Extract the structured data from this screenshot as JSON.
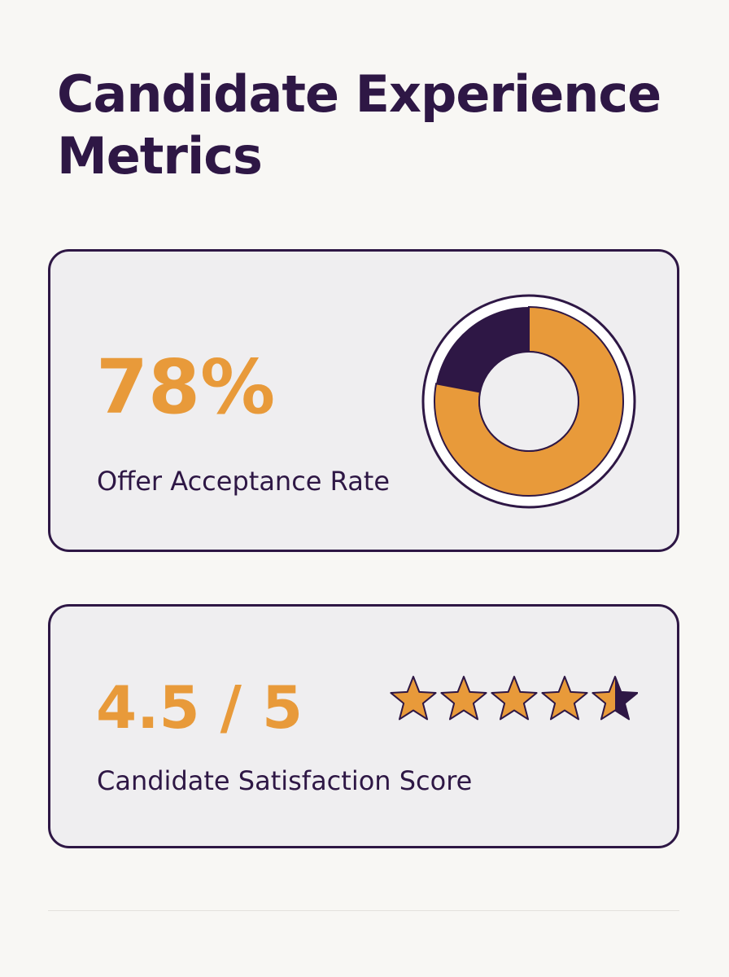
{
  "title": "Candidate Experience Metrics",
  "offer_acceptance": {
    "value_text": "78%",
    "label": "Offer Acceptance Rate",
    "percent": 78
  },
  "satisfaction": {
    "value_text": "4.5 / 5",
    "label": "Candidate Satisfaction Score",
    "rating": 4.5,
    "max_rating": 5
  },
  "colors": {
    "primary": "#2e1745",
    "accent": "#e89a3a",
    "card_bg": "#efeef0",
    "page_bg": "#f8f7f4"
  },
  "icons": {
    "rating": "star-icon"
  }
}
